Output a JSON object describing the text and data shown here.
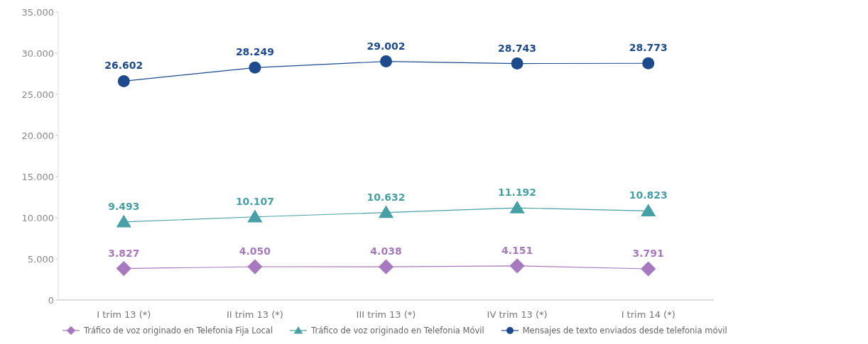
{
  "chart_data": {
    "type": "line",
    "categories": [
      "I trim 13 (*)",
      "II trim 13 (*)",
      "III trim 13 (*)",
      "IV trim 13 (*)",
      "I trim 14 (*)"
    ],
    "series": [
      {
        "name": "Tráfico de voz originado en Telefonia Fija Local",
        "color": "#a779bf",
        "marker": "diamond",
        "values": [
          3827,
          4050,
          4038,
          4151,
          3791
        ],
        "value_labels": [
          "3.827",
          "4.050",
          "4.038",
          "4.151",
          "3.791"
        ]
      },
      {
        "name": "Tráfico de voz originado en Telefonia Móvil",
        "color": "#47a0a6",
        "marker": "triangle",
        "values": [
          9493,
          10107,
          10632,
          11192,
          10823
        ],
        "value_labels": [
          "9.493",
          "10.107",
          "10.632",
          "11.192",
          "10.823"
        ]
      },
      {
        "name": "Mensajes de texto enviados desde telefonia móvil",
        "color": "#1c4a8c",
        "marker": "circle",
        "values": [
          26602,
          28249,
          29002,
          28743,
          28773
        ],
        "value_labels": [
          "26.602",
          "28.249",
          "29.002",
          "28.743",
          "28.773"
        ]
      }
    ],
    "ylim": [
      0,
      35000
    ],
    "yticks": [
      {
        "value": 0,
        "label": "0"
      },
      {
        "value": 5000,
        "label": "5.000"
      },
      {
        "value": 10000,
        "label": "10.000"
      },
      {
        "value": 15000,
        "label": "15.000"
      },
      {
        "value": 20000,
        "label": "20.000"
      },
      {
        "value": 25000,
        "label": "25.000"
      },
      {
        "value": 30000,
        "label": "30.000"
      },
      {
        "value": 35000,
        "label": "35.000"
      }
    ],
    "legend": "bottom"
  }
}
